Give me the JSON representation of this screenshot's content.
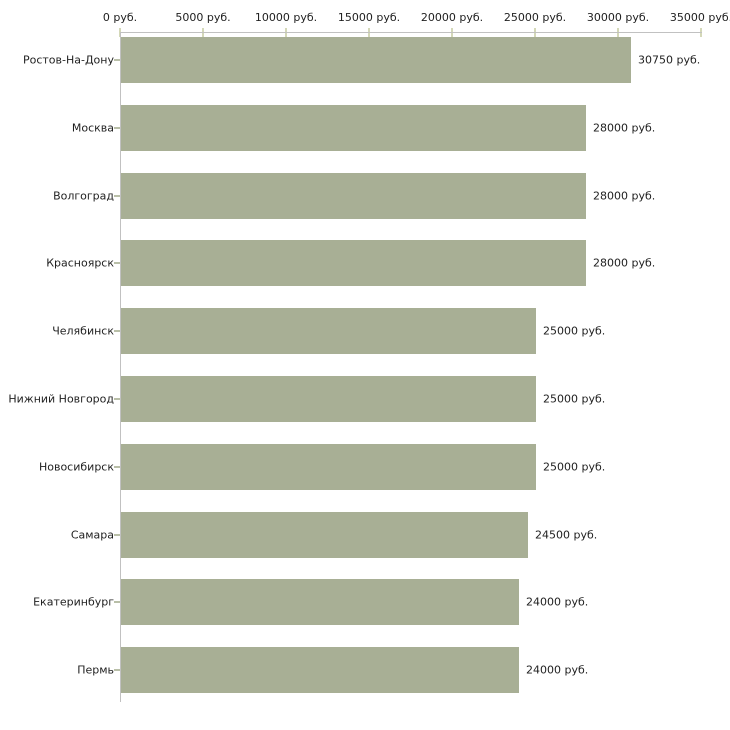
{
  "chart_data": {
    "type": "bar",
    "orientation": "horizontal",
    "title": "",
    "categories": [
      "Ростов-На-Дону",
      "Москва",
      "Волгоград",
      "Красноярск",
      "Челябинск",
      "Нижний Новгород",
      "Новосибирск",
      "Самара",
      "Екатеринбург",
      "Пермь"
    ],
    "values": [
      30750,
      28000,
      28000,
      28000,
      25000,
      25000,
      25000,
      24500,
      24000,
      24000
    ],
    "value_labels": [
      "30750 руб.",
      "28000 руб.",
      "28000 руб.",
      "28000 руб.",
      "25000 руб.",
      "25000 руб.",
      "25000 руб.",
      "24500 руб.",
      "24000 руб.",
      "24000 руб."
    ],
    "x_ticks": [
      0,
      5000,
      10000,
      15000,
      20000,
      25000,
      30000,
      35000
    ],
    "x_tick_labels": [
      "0 руб.",
      "5000 руб.",
      "10000 руб.",
      "15000 руб.",
      "20000 руб.",
      "25000 руб.",
      "30000 руб.",
      "35000 руб."
    ],
    "xlim": [
      0,
      35000
    ],
    "unit": "руб.",
    "grid": false,
    "legend_position": "none",
    "colors": {
      "bar": "#a8af95",
      "axis_line": "#c1c1c1",
      "x_tick_mark": "#d4d8b8",
      "y_tick_mark": "#b9bfa8",
      "text": "#1f1f1f",
      "background": "#ffffff"
    }
  }
}
